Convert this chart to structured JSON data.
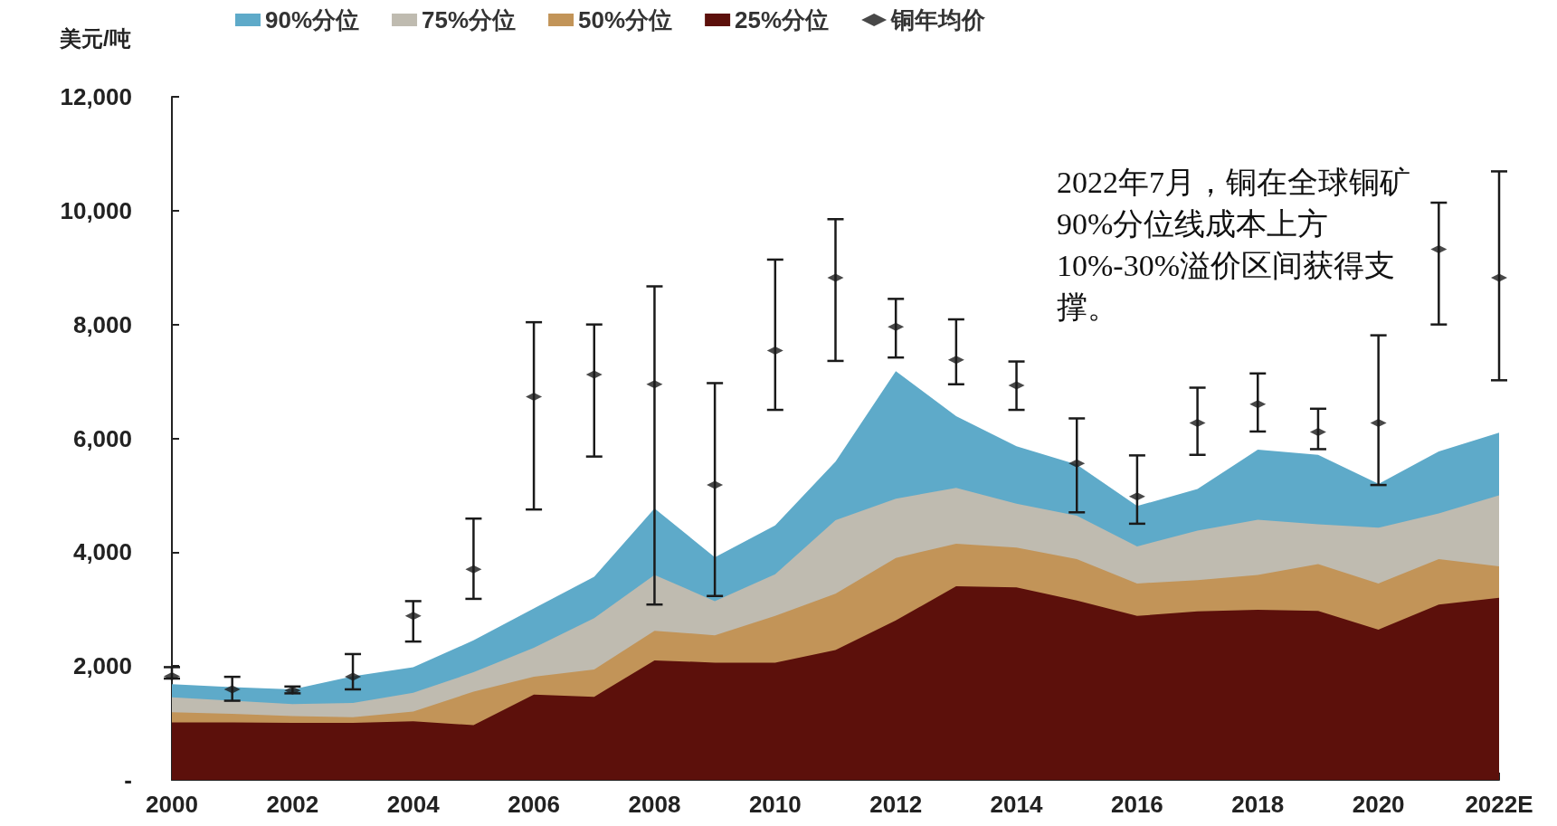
{
  "chart_data": {
    "type": "area",
    "ylabel": "美元/吨",
    "legend": "top",
    "categories": [
      "2000",
      null,
      "2002",
      null,
      "2004",
      null,
      "2006",
      null,
      "2008",
      null,
      "2010",
      null,
      "2012",
      null,
      "2014",
      null,
      "2016",
      null,
      "2018",
      null,
      "2020",
      null,
      "2022E"
    ],
    "ylim": [
      0,
      12000
    ],
    "yticks": [
      {
        "value": 0,
        "label": "-"
      },
      {
        "value": 2000,
        "label": "2,000"
      },
      {
        "value": 4000,
        "label": "4,000"
      },
      {
        "value": 6000,
        "label": "6,000"
      },
      {
        "value": 8000,
        "label": "8,000"
      },
      {
        "value": 10000,
        "label": "10,000"
      },
      {
        "value": 12000,
        "label": "12,000"
      }
    ],
    "series": [
      {
        "name": "90%分位",
        "color": "#5eaac9",
        "values": [
          1680,
          1630,
          1590,
          1820,
          1980,
          2450,
          3010,
          3570,
          4770,
          3910,
          4470,
          5590,
          7180,
          6390,
          5860,
          5540,
          4810,
          5110,
          5800,
          5710,
          5200,
          5770,
          6100
        ]
      },
      {
        "name": "75%分位",
        "color": "#bfbbb0",
        "values": [
          1450,
          1390,
          1330,
          1350,
          1530,
          1890,
          2320,
          2840,
          3600,
          3140,
          3610,
          4560,
          4940,
          5130,
          4850,
          4640,
          4100,
          4380,
          4570,
          4490,
          4430,
          4680,
          5000
        ]
      },
      {
        "name": "50%分位",
        "color": "#c29458",
        "values": [
          1190,
          1160,
          1120,
          1100,
          1200,
          1550,
          1810,
          1940,
          2620,
          2540,
          2880,
          3270,
          3900,
          4150,
          4080,
          3880,
          3450,
          3510,
          3600,
          3790,
          3450,
          3880,
          3750
        ]
      },
      {
        "name": "25%分位",
        "color": "#5c100b",
        "values": [
          1010,
          1010,
          1000,
          1000,
          1030,
          960,
          1500,
          1460,
          2100,
          2060,
          2060,
          2280,
          2800,
          3400,
          3380,
          3150,
          2880,
          2960,
          2990,
          2970,
          2640,
          3080,
          3200
        ]
      },
      {
        "name": "铜年均价",
        "type": "scatter",
        "color": "#1a1a1a",
        "values": [
          1820,
          1590,
          1570,
          1810,
          2880,
          3700,
          6730,
          7120,
          6950,
          5180,
          7540,
          8820,
          7960,
          7380,
          6930,
          5560,
          4980,
          6270,
          6600,
          6110,
          6270,
          9320,
          8820
        ],
        "errors": [
          [
            1780,
            1980
          ],
          [
            1390,
            1810
          ],
          [
            1520,
            1640
          ],
          [
            1590,
            2210
          ],
          [
            2430,
            3140
          ],
          [
            3180,
            4590
          ],
          [
            4750,
            8040
          ],
          [
            5680,
            8000
          ],
          [
            3080,
            8670
          ],
          [
            3230,
            6970
          ],
          [
            6500,
            9140
          ],
          [
            7360,
            9850
          ],
          [
            7420,
            8450
          ],
          [
            6950,
            8090
          ],
          [
            6500,
            7350
          ],
          [
            4700,
            6350
          ],
          [
            4500,
            5700
          ],
          [
            5710,
            6890
          ],
          [
            6120,
            7140
          ],
          [
            5810,
            6520
          ],
          [
            5180,
            7810
          ],
          [
            8000,
            10140
          ],
          [
            7020,
            10690
          ]
        ]
      }
    ],
    "annotations": [
      "2022年7月，铜在全球铜矿90%分位线成本上方10%-30%溢价区间获得支撑。"
    ]
  }
}
